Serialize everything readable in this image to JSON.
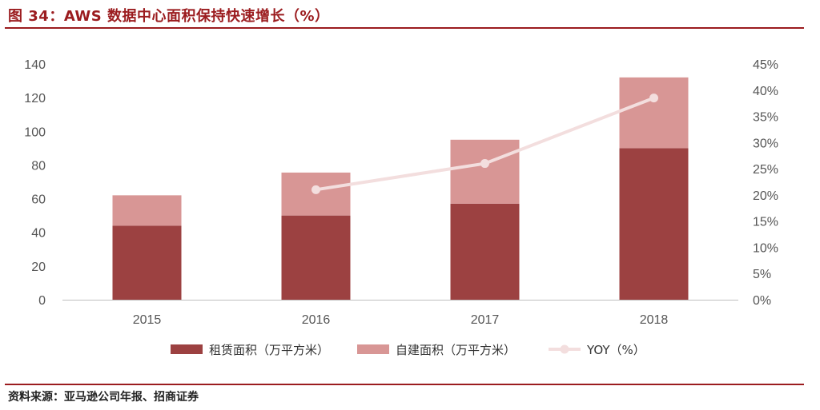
{
  "header": {
    "title": "图 34：AWS 数据中心面积保持快速增长（%）"
  },
  "footer": {
    "source": "资料来源：亚马逊公司年报、招商证券"
  },
  "chart_data": {
    "type": "bar",
    "stacked": true,
    "categories": [
      "2015",
      "2016",
      "2017",
      "2018"
    ],
    "series": [
      {
        "name": "租赁面积（万平方米）",
        "values": [
          44,
          50,
          57,
          90
        ],
        "color": "#9c4141",
        "axis": "left"
      },
      {
        "name": "自建面积（万平方米）",
        "values": [
          18,
          25.5,
          38,
          42
        ],
        "color": "#d89695",
        "axis": "left"
      }
    ],
    "line_series": [
      {
        "name": "YOY（%）",
        "type": "line",
        "x": [
          "2016",
          "2017",
          "2018"
        ],
        "values": [
          21,
          26,
          38.5
        ],
        "color": "#f3dede",
        "axis": "right"
      }
    ],
    "y_left": {
      "ylim": [
        0,
        140
      ],
      "ticks": [
        "0",
        "20",
        "40",
        "60",
        "80",
        "100",
        "120",
        "140"
      ]
    },
    "y_right": {
      "ylim": [
        0,
        45
      ],
      "ticks": [
        "0%",
        "5%",
        "10%",
        "15%",
        "20%",
        "25%",
        "30%",
        "35%",
        "40%",
        "45%"
      ]
    },
    "grid": false,
    "legend": "bottom"
  }
}
